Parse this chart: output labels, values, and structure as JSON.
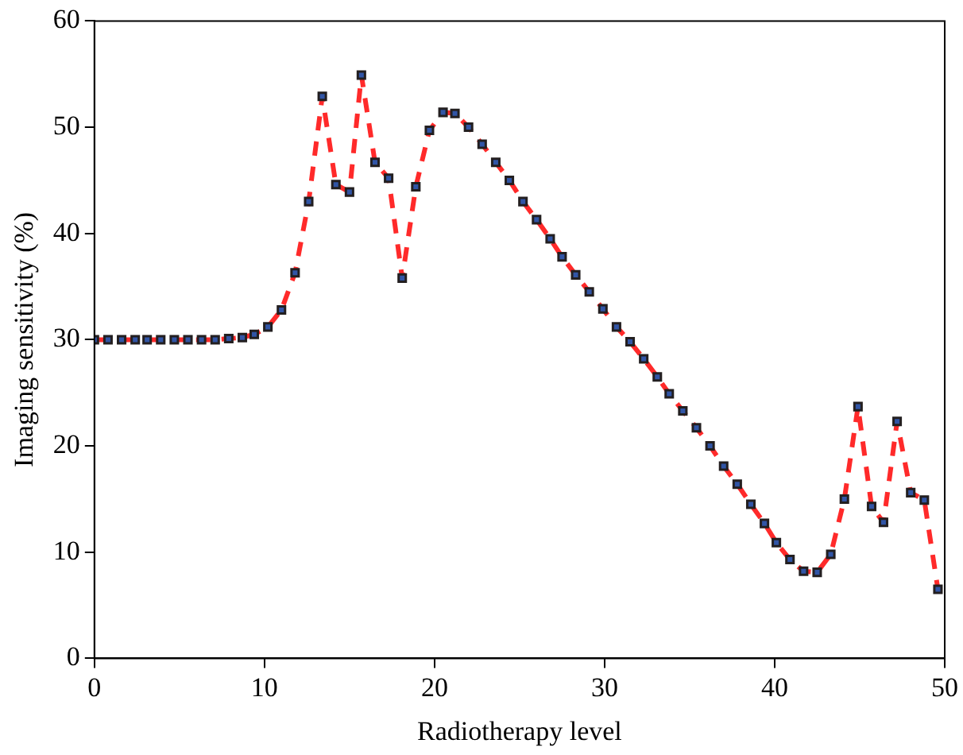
{
  "chart_data": {
    "type": "line",
    "xlabel": "Radiotherapy level",
    "ylabel": "Imaging sensitivity (%)",
    "x": [
      0,
      0.8,
      1.6,
      2.4,
      3.1,
      3.9,
      4.7,
      5.5,
      6.3,
      7.1,
      7.9,
      8.7,
      9.4,
      10.2,
      11.0,
      11.8,
      12.6,
      13.4,
      14.2,
      15.0,
      15.7,
      16.5,
      17.3,
      18.1,
      18.9,
      19.7,
      20.5,
      21.2,
      22.0,
      22.8,
      23.6,
      24.4,
      25.2,
      26.0,
      26.8,
      27.5,
      28.3,
      29.1,
      29.9,
      30.7,
      31.5,
      32.3,
      33.1,
      33.8,
      34.6,
      35.4,
      36.2,
      37.0,
      37.8,
      38.6,
      39.4,
      40.1,
      40.9,
      41.7,
      42.5,
      43.3,
      44.1,
      44.9,
      45.7,
      46.4,
      47.2,
      48.0,
      48.8,
      49.6
    ],
    "series": [
      {
        "color": "#ff2a2a",
        "values": [
          30,
          30,
          30,
          30,
          30,
          30,
          30,
          30,
          30,
          30,
          30.1,
          30.2,
          30.5,
          31.2,
          32.8,
          36.3,
          43.0,
          52.9,
          44.6,
          43.9,
          54.9,
          46.7,
          45.2,
          35.8,
          44.4,
          49.7,
          51.4,
          51.3,
          50.0,
          48.4,
          46.7,
          45.0,
          43.0,
          41.3,
          39.5,
          37.8,
          36.1,
          34.5,
          32.9,
          31.2,
          29.8,
          28.2,
          26.5,
          24.9,
          23.3,
          21.7,
          20.0,
          18.1,
          16.4,
          14.5,
          12.7,
          10.9,
          9.3,
          8.2,
          8.1,
          9.8,
          15.0,
          23.7,
          14.3,
          12.8,
          22.3,
          15.6,
          14.9,
          6.5
        ]
      }
    ],
    "xlim": [
      0,
      50
    ],
    "xticks": [
      0,
      10,
      20,
      30,
      40,
      50
    ],
    "ylim": [
      0,
      60
    ],
    "yticks": [
      0,
      10,
      20,
      30,
      40,
      50,
      60
    ],
    "grid": false,
    "legend": false,
    "marker": "square",
    "line_style": "dashed"
  }
}
